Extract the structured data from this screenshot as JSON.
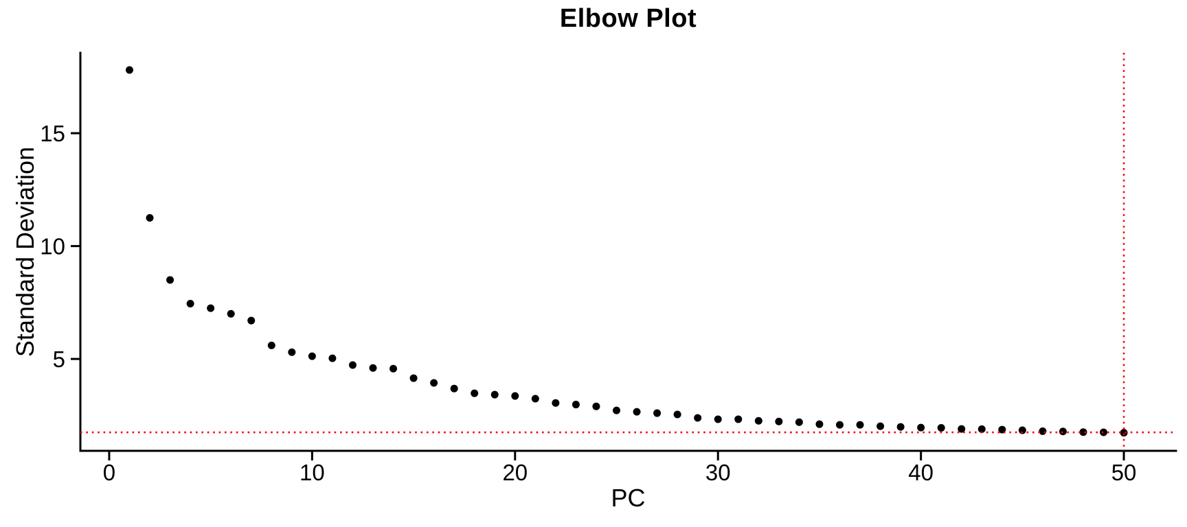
{
  "chart_data": {
    "type": "scatter",
    "title": "Elbow Plot",
    "xlabel": "PC",
    "ylabel": "Standard Deviation",
    "x": [
      1,
      2,
      3,
      4,
      5,
      6,
      7,
      8,
      9,
      10,
      11,
      12,
      13,
      14,
      15,
      16,
      17,
      18,
      19,
      20,
      21,
      22,
      23,
      24,
      25,
      26,
      27,
      28,
      29,
      30,
      31,
      32,
      33,
      34,
      35,
      36,
      37,
      38,
      39,
      40,
      41,
      42,
      43,
      44,
      45,
      46,
      47,
      48,
      49,
      50
    ],
    "y": [
      17.8,
      11.25,
      8.5,
      7.45,
      7.25,
      7.0,
      6.7,
      5.6,
      5.3,
      5.12,
      5.03,
      4.73,
      4.6,
      4.57,
      4.15,
      3.94,
      3.69,
      3.48,
      3.42,
      3.36,
      3.24,
      3.05,
      2.98,
      2.9,
      2.72,
      2.66,
      2.6,
      2.54,
      2.39,
      2.33,
      2.33,
      2.26,
      2.23,
      2.2,
      2.11,
      2.08,
      2.08,
      2.02,
      1.99,
      1.96,
      1.95,
      1.9,
      1.89,
      1.87,
      1.84,
      1.8,
      1.79,
      1.76,
      1.75,
      1.73
    ],
    "x_ticks": [
      0,
      10,
      20,
      30,
      40,
      50
    ],
    "y_ticks": [
      5,
      10,
      15
    ],
    "xlim": [
      -1.42,
      52.57
    ],
    "ylim": [
      0.93,
      18.56
    ],
    "reference_lines": {
      "horizontal_y": 1.75,
      "vertical_x": 50
    },
    "colors": {
      "points": "#000000",
      "axis": "#000000",
      "reference": "#FF0000"
    },
    "grid": false
  }
}
